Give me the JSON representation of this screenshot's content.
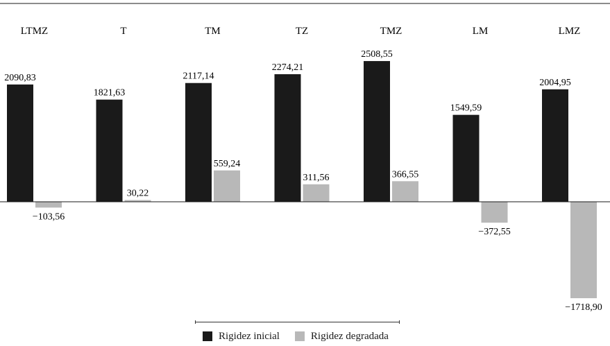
{
  "chart_data": {
    "type": "bar",
    "categories": [
      "LTMZ",
      "T",
      "TM",
      "TZ",
      "TMZ",
      "LM",
      "LMZ"
    ],
    "series": [
      {
        "name": "Rigidez inicial",
        "values": [
          2090.83,
          1821.63,
          2117.14,
          2274.21,
          2508.55,
          1549.59,
          2004.95
        ],
        "labels": [
          "2090,83",
          "1821,63",
          "2117,14",
          "2274,21",
          "2508,55",
          "1549,59",
          "2004,95"
        ],
        "color": "#1a1a1a"
      },
      {
        "name": "Rigidez degradada",
        "values": [
          -103.56,
          30.22,
          559.24,
          311.56,
          366.55,
          -372.55,
          -1718.9
        ],
        "labels": [
          "−103,56",
          "30,22",
          "559,24",
          "311,56",
          "366,55",
          "−372,55",
          "−1718,90"
        ],
        "color": "#b8b8b8"
      }
    ],
    "title": "",
    "xlabel": "",
    "ylabel": "",
    "ylim": [
      -1900,
      2800
    ],
    "grid": false,
    "legend_position": "bottom-center"
  }
}
